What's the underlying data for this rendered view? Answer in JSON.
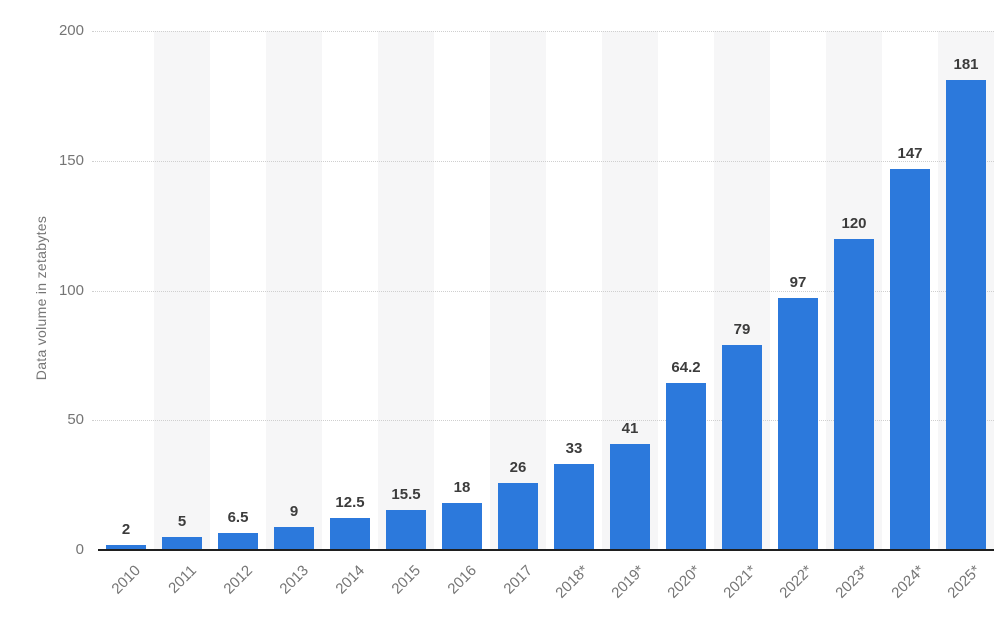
{
  "chart": {
    "y_axis_title": "Data volume in zetabytes",
    "y_ticks": [
      0,
      50,
      100,
      150,
      200
    ],
    "colors": {
      "bar": "#2c79dc",
      "stripe": "#f6f6f7",
      "gridline": "#cfcfcf",
      "baseline": "#1f1f1f",
      "axis_text": "#757575",
      "value_text": "#3c3c3c"
    }
  },
  "chart_data": {
    "type": "bar",
    "categories": [
      "2010",
      "2011",
      "2012",
      "2013",
      "2014",
      "2015",
      "2016",
      "2017",
      "2018*",
      "2019*",
      "2020*",
      "2021*",
      "2022*",
      "2023*",
      "2024*",
      "2025*"
    ],
    "values": [
      2,
      5,
      6.5,
      9,
      12.5,
      15.5,
      18,
      26,
      33,
      41,
      64.2,
      79,
      97,
      120,
      147,
      181
    ],
    "value_labels": [
      "2",
      "5",
      "6.5",
      "9",
      "12.5",
      "15.5",
      "18",
      "26",
      "33",
      "41",
      "64.2",
      "79",
      "97",
      "120",
      "147",
      "181"
    ],
    "title": "",
    "xlabel": "",
    "ylabel": "Data volume in zetabytes",
    "ylim": [
      0,
      200
    ],
    "grid": "horizontal-dotted",
    "legend": "none",
    "plot_background": "alternating-vertical-stripes"
  }
}
